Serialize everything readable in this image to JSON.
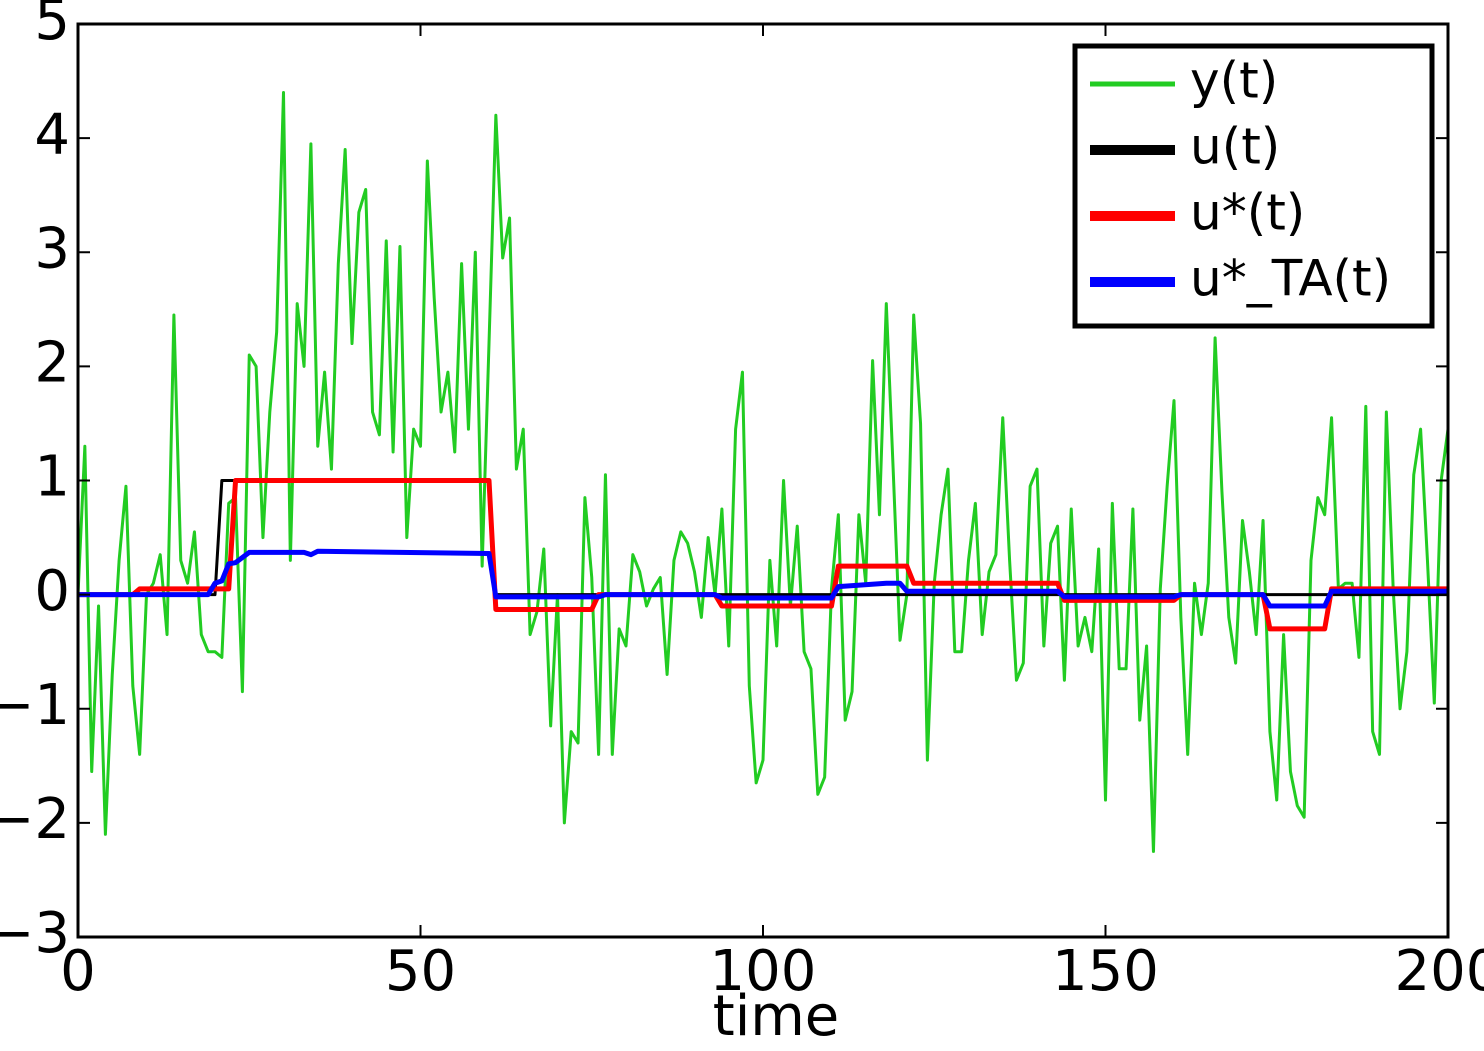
{
  "chart_data": {
    "type": "line",
    "x_label": "time",
    "xlim": [
      0,
      200
    ],
    "xticks": [
      0,
      50,
      100,
      150,
      200
    ],
    "ylim": [
      -3,
      5
    ],
    "yticks": [
      {
        "value": -3,
        "label": "−3"
      },
      {
        "value": -2,
        "label": "−2"
      },
      {
        "value": -1,
        "label": "−1"
      },
      0,
      1,
      2,
      3,
      4,
      5
    ],
    "legend": "upper right",
    "series": [
      {
        "name": "y(t)",
        "color": "#22cc22",
        "x": [
          0,
          1,
          2,
          3,
          4,
          5,
          6,
          7,
          8,
          9,
          10,
          11,
          12,
          13,
          14,
          15,
          16,
          17,
          18,
          19,
          20,
          21,
          22,
          23,
          24,
          25,
          26,
          27,
          28,
          29,
          30,
          31,
          32,
          33,
          34,
          35,
          36,
          37,
          38,
          39,
          40,
          41,
          42,
          43,
          44,
          45,
          46,
          47,
          48,
          49,
          50,
          51,
          52,
          53,
          54,
          55,
          56,
          57,
          58,
          59,
          60,
          61,
          62,
          63,
          64,
          65,
          66,
          67,
          68,
          69,
          70,
          71,
          72,
          73,
          74,
          75,
          76,
          77,
          78,
          79,
          80,
          81,
          82,
          83,
          84,
          85,
          86,
          87,
          88,
          89,
          90,
          91,
          92,
          93,
          94,
          95,
          96,
          97,
          98,
          99,
          100,
          101,
          102,
          103,
          104,
          105,
          106,
          107,
          108,
          109,
          110,
          111,
          112,
          113,
          114,
          115,
          116,
          117,
          118,
          119,
          120,
          121,
          122,
          123,
          124,
          125,
          126,
          127,
          128,
          129,
          130,
          131,
          132,
          133,
          134,
          135,
          136,
          137,
          138,
          139,
          140,
          141,
          142,
          143,
          144,
          145,
          146,
          147,
          148,
          149,
          150,
          151,
          152,
          153,
          154,
          155,
          156,
          157,
          158,
          159,
          160,
          161,
          162,
          163,
          164,
          165,
          166,
          167,
          168,
          169,
          170,
          171,
          172,
          173,
          174,
          175,
          176,
          177,
          178,
          179,
          180,
          181,
          182,
          183,
          184,
          185,
          186,
          187,
          188,
          189,
          190,
          191,
          192,
          193,
          194,
          195,
          196,
          197,
          198,
          199,
          200
        ],
        "values": [
          0,
          1.3,
          -1.55,
          -0.1,
          -2.1,
          -0.7,
          0.3,
          0.95,
          -0.8,
          -1.4,
          0,
          0.1,
          0.35,
          -0.35,
          2.45,
          0.3,
          0.1,
          0.55,
          -0.35,
          -0.5,
          -0.5,
          -0.55,
          0.8,
          0.85,
          -0.85,
          2.1,
          2.0,
          0.5,
          1.6,
          2.3,
          4.4,
          0.3,
          2.55,
          2.0,
          3.95,
          1.3,
          1.95,
          1.1,
          2.9,
          3.9,
          2.2,
          3.35,
          3.55,
          1.6,
          1.4,
          3.1,
          1.25,
          3.05,
          0.5,
          1.45,
          1.3,
          3.8,
          2.6,
          1.6,
          1.95,
          1.25,
          2.9,
          1.45,
          3.0,
          0.25,
          2.2,
          4.2,
          2.95,
          3.3,
          1.1,
          1.45,
          -0.35,
          -0.15,
          0.4,
          -1.15,
          0,
          -2.0,
          -1.2,
          -1.3,
          0.85,
          0.15,
          -1.4,
          1.05,
          -1.4,
          -0.3,
          -0.45,
          0.35,
          0.2,
          -0.1,
          0.05,
          0.15,
          -0.7,
          0.3,
          0.55,
          0.45,
          0.2,
          -0.2,
          0.5,
          0,
          0.75,
          -0.45,
          1.45,
          1.95,
          -0.8,
          -1.65,
          -1.45,
          0.3,
          -0.45,
          1.0,
          -0.1,
          0.6,
          -0.5,
          -0.65,
          -1.75,
          -1.6,
          0.05,
          0.7,
          -1.1,
          -0.85,
          0.7,
          0.1,
          2.05,
          0.7,
          2.55,
          1.1,
          -0.4,
          0,
          2.45,
          1.5,
          -1.45,
          0.1,
          0.7,
          1.1,
          -0.5,
          -0.5,
          0.3,
          0.8,
          -0.35,
          0.2,
          0.35,
          1.55,
          0.3,
          -0.75,
          -0.6,
          0.95,
          1.1,
          -0.45,
          0.45,
          0.6,
          -0.75,
          0.75,
          -0.45,
          -0.2,
          -0.5,
          0.4,
          -1.8,
          0.8,
          -0.65,
          -0.65,
          0.75,
          -1.1,
          -0.45,
          -2.25,
          0.05,
          0.95,
          1.7,
          -0.2,
          -1.4,
          0.1,
          -0.35,
          0.1,
          2.25,
          0.9,
          -0.2,
          -0.6,
          0.65,
          0.2,
          -0.35,
          0.65,
          -1.2,
          -1.8,
          -0.35,
          -1.55,
          -1.85,
          -1.95,
          0.3,
          0.85,
          0.7,
          1.55,
          0.05,
          0.1,
          0.1,
          -0.55,
          1.65,
          -1.2,
          -1.4,
          1.6,
          0.05,
          -1.0,
          -0.5,
          1.05,
          1.45,
          0.3,
          -0.95,
          1.0,
          1.45
        ]
      },
      {
        "name": "u(t)",
        "color": "#000000",
        "x": [
          0,
          20,
          21,
          60,
          61,
          200
        ],
        "values": [
          0,
          0,
          1,
          1,
          0,
          0
        ]
      },
      {
        "name": "u*(t)",
        "color": "#ff0000",
        "x": [
          0,
          8,
          9,
          22,
          23,
          60,
          61,
          75,
          76,
          93,
          94,
          110,
          111,
          121,
          122,
          143,
          144,
          160,
          161,
          173,
          174,
          182,
          183,
          200
        ],
        "values": [
          0,
          0,
          0.05,
          0.05,
          1.0,
          1.0,
          -0.13,
          -0.13,
          0,
          0,
          -0.1,
          -0.1,
          0.25,
          0.25,
          0.1,
          0.1,
          -0.05,
          -0.05,
          0,
          0,
          -0.3,
          -0.3,
          0.05,
          0.05
        ]
      },
      {
        "name": "u*_TA(t)",
        "color": "#0000ff",
        "x": [
          0,
          19,
          20,
          21,
          22,
          23,
          25,
          33,
          34,
          35,
          60,
          61,
          62,
          76,
          77,
          93,
          94,
          110,
          111,
          118,
          120,
          121,
          122,
          143,
          144,
          160,
          161,
          173,
          174,
          182,
          183,
          200
        ],
        "values": [
          0,
          0,
          0.1,
          0.12,
          0.27,
          0.28,
          0.37,
          0.37,
          0.35,
          0.38,
          0.36,
          -0.02,
          -0.02,
          -0.02,
          0,
          0,
          -0.03,
          -0.03,
          0.07,
          0.1,
          0.1,
          0.03,
          0.03,
          0.03,
          -0.02,
          -0.02,
          0,
          0,
          -0.1,
          -0.1,
          0.03,
          0.03
        ]
      }
    ]
  }
}
